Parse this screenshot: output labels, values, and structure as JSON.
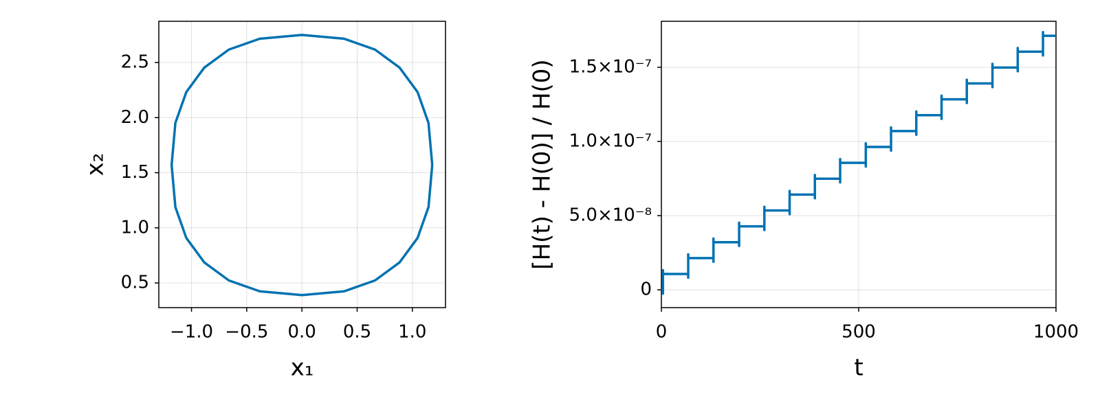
{
  "chart_data": [
    {
      "type": "line",
      "xlabel": "x₁",
      "ylabel": "x₂",
      "color": "#0072b2",
      "grid": true,
      "xlim": [
        -1.296,
        1.3
      ],
      "ylim": [
        0.276,
        2.874
      ],
      "xticks": [
        {
          "value": -1.0,
          "label": "−1.0"
        },
        {
          "value": -0.5,
          "label": "−0.5"
        },
        {
          "value": 0.0,
          "label": "0.0"
        },
        0.5,
        {
          "value": 1.0,
          "label": "1.0"
        }
      ],
      "yticks": [
        0.5,
        {
          "value": 1.0,
          "label": "1.0"
        },
        1.5,
        {
          "value": 2.0,
          "label": "2.0"
        },
        2.5
      ],
      "x": [
        1.18,
        1.146,
        1.047,
        0.884,
        0.662,
        0.382,
        0,
        -0.382,
        -0.662,
        -0.884,
        -1.047,
        -1.146,
        -1.18,
        -1.146,
        -1.047,
        -0.884,
        -0.662,
        -0.382,
        0,
        0.382,
        0.662,
        0.884,
        1.047,
        1.146,
        1.18
      ],
      "values": [
        1.57,
        1.952,
        2.232,
        2.454,
        2.617,
        2.716,
        2.75,
        2.716,
        2.617,
        2.454,
        2.232,
        1.952,
        1.57,
        1.188,
        0.908,
        0.686,
        0.523,
        0.424,
        0.39,
        0.424,
        0.523,
        0.686,
        0.908,
        1.188,
        1.57
      ]
    },
    {
      "type": "line",
      "xlabel": "t",
      "ylabel": "[H(t) - H(0)] / H(0)",
      "color": "#0072b2",
      "grid": true,
      "xlim": [
        0,
        1000
      ],
      "ylim": [
        -1.2e-08,
        1.81e-07
      ],
      "xticks": [
        0,
        500,
        1000
      ],
      "yticks": [
        0,
        {
          "value": 5e-08,
          "label": "5.0×10⁻⁸"
        },
        {
          "value": 1e-07,
          "label": "1.0×10⁻⁷"
        },
        {
          "value": 1.5e-07,
          "label": "1.5×10⁻⁷"
        }
      ],
      "x": [
        0,
        4,
        4,
        4,
        4,
        68,
        68,
        68,
        68,
        132,
        132,
        132,
        132,
        197,
        197,
        197,
        197,
        261,
        261,
        261,
        261,
        325,
        325,
        325,
        325,
        389,
        389,
        389,
        389,
        453,
        453,
        453,
        453,
        518,
        518,
        518,
        518,
        582,
        582,
        582,
        582,
        646,
        646,
        646,
        646,
        710,
        710,
        710,
        710,
        774,
        774,
        774,
        774,
        839,
        839,
        839,
        839,
        903,
        903,
        903,
        903,
        967,
        967,
        967,
        967,
        1000
      ],
      "values": [
        0,
        0,
        -2.5e-09,
        1.32e-08,
        1.07e-08,
        1.07e-08,
        8.2e-09,
        2.39e-08,
        2.14e-08,
        2.14e-08,
        1.89e-08,
        3.46e-08,
        3.21e-08,
        3.21e-08,
        2.96e-08,
        4.53e-08,
        4.28e-08,
        4.28e-08,
        4.03e-08,
        5.6e-08,
        5.35e-08,
        5.35e-08,
        5.1e-08,
        6.67e-08,
        6.42e-08,
        6.42e-08,
        6.17e-08,
        7.74e-08,
        7.49e-08,
        7.49e-08,
        7.24e-08,
        8.81e-08,
        8.56e-08,
        8.56e-08,
        8.31e-08,
        9.88e-08,
        9.63e-08,
        9.63e-08,
        9.38e-08,
        1.095e-07,
        1.07e-07,
        1.07e-07,
        1.045e-07,
        1.202e-07,
        1.177e-07,
        1.177e-07,
        1.152e-07,
        1.309e-07,
        1.284e-07,
        1.284e-07,
        1.259e-07,
        1.416e-07,
        1.391e-07,
        1.391e-07,
        1.366e-07,
        1.523e-07,
        1.498e-07,
        1.498e-07,
        1.473e-07,
        1.63e-07,
        1.605e-07,
        1.605e-07,
        1.58e-07,
        1.737e-07,
        1.712e-07,
        1.712e-07
      ]
    }
  ]
}
